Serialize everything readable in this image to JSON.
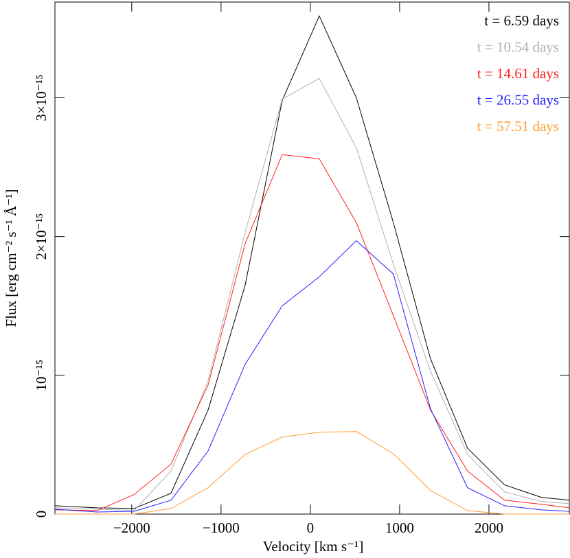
{
  "chart_data": {
    "type": "line",
    "xlabel": "Velocity [km s⁻¹]",
    "ylabel": "Flux [erg cm⁻² s⁻¹ Å⁻¹]",
    "x": [
      -2860,
      -2390,
      -1975,
      -1560,
      -1145,
      -730,
      -315,
      100,
      515,
      930,
      1345,
      1760,
      2175,
      2590,
      2900
    ],
    "series": [
      {
        "name": "t = 6.59 days",
        "color": "#000000",
        "values": [
          6e-17,
          4.5e-17,
          4e-17,
          1.5e-16,
          7.5e-16,
          1.65e-15,
          2.98e-15,
          3.59e-15,
          3e-15,
          2.1e-15,
          1.12e-15,
          4.75e-16,
          2.1e-16,
          1.2e-16,
          1e-16
        ]
      },
      {
        "name": "t = 10.54 days",
        "color": "#b0b0b0",
        "values": [
          4.5e-17,
          3.5e-17,
          2.5e-17,
          3.1e-16,
          9.6e-16,
          2.03e-15,
          2.99e-15,
          3.14e-15,
          2.64e-15,
          1.8e-15,
          1.03e-15,
          4.3e-16,
          1.6e-16,
          9e-17,
          7.5e-17
        ]
      },
      {
        "name": "t = 14.61 days",
        "color": "#ff2020",
        "values": [
          3e-17,
          2.5e-17,
          1.4e-16,
          3.6e-16,
          9.3e-16,
          1.95e-15,
          2.59e-15,
          2.56e-15,
          2.1e-15,
          1.43e-15,
          7.5e-16,
          3.1e-16,
          1e-16,
          7e-17,
          4.5e-17
        ]
      },
      {
        "name": "t = 26.55 days",
        "color": "#2020ff",
        "values": [
          3.5e-17,
          1.5e-17,
          2e-17,
          1e-16,
          4.55e-16,
          1.08e-15,
          1.5e-15,
          1.71e-15,
          1.97e-15,
          1.73e-15,
          7.6e-16,
          1.9e-16,
          6e-17,
          3e-17,
          2e-17
        ]
      },
      {
        "name": "t = 57.51 days",
        "color": "#ff9a2e",
        "values": [
          0,
          0,
          0,
          4e-17,
          1.9e-16,
          4.3e-16,
          5.55e-16,
          5.9e-16,
          5.95e-16,
          4.35e-16,
          1.7e-16,
          2.5e-17,
          0,
          0,
          0
        ]
      }
    ],
    "xlim": [
      -2860,
      2900
    ],
    "ylim": [
      0,
      3.69e-15
    ],
    "xticks": [
      {
        "value": -2000,
        "label": "−2000"
      },
      {
        "value": -1000,
        "label": "−1000"
      },
      0,
      1000,
      2000
    ],
    "yticks": [
      0,
      {
        "value": 1e-15,
        "label": "10⁻¹⁵"
      },
      {
        "value": 2e-15,
        "label": "2×10⁻¹⁵"
      },
      {
        "value": 3e-15,
        "label": "3×10⁻¹⁵"
      }
    ],
    "legend": "upper right",
    "grid": false
  }
}
